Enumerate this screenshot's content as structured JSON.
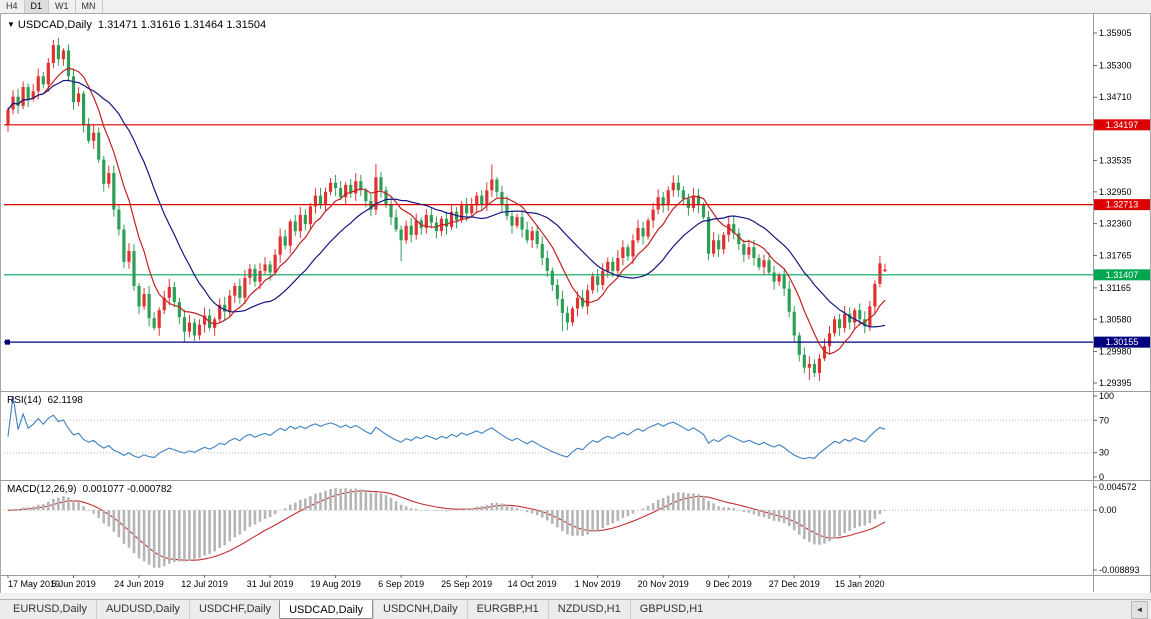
{
  "toolbar": {
    "timeframes": [
      {
        "label": "H4",
        "active": false
      },
      {
        "label": "D1",
        "active": true
      },
      {
        "label": "W1",
        "active": false
      },
      {
        "label": "MN",
        "active": false
      }
    ]
  },
  "chart": {
    "title": {
      "dropdown_glyph": "▼",
      "symbol": "USDCAD,Daily",
      "ohlc": "1.31471 1.31616 1.31464 1.31504"
    },
    "rsi_label": "RSI(14)",
    "rsi_value": "62.1198",
    "macd_label": "MACD(12,26,9)",
    "macd_values": "0.001077 -0.000782"
  },
  "chart_data": {
    "type": "candlestick",
    "symbol": "USDCAD",
    "timeframe": "Daily",
    "current_ohlc": {
      "open": 1.31471,
      "high": 1.31616,
      "low": 1.31464,
      "close": 1.31504
    },
    "ylim": [
      1.29395,
      1.35905
    ],
    "price_ticks": [
      "1.35905",
      "1.35300",
      "1.34710",
      "1.33535",
      "1.32950",
      "1.32360",
      "1.31765",
      "1.31165",
      "1.30580",
      "1.29980",
      "1.29395"
    ],
    "date_labels": [
      {
        "bar": 0,
        "label": "17 May 2019"
      },
      {
        "bar": 13,
        "label": "5 Jun 2019"
      },
      {
        "bar": 26,
        "label": "24 Jun 2019"
      },
      {
        "bar": 39,
        "label": "12 Jul 2019"
      },
      {
        "bar": 52,
        "label": "31 Jul 2019"
      },
      {
        "bar": 65,
        "label": "19 Aug 2019"
      },
      {
        "bar": 78,
        "label": "6 Sep 2019"
      },
      {
        "bar": 91,
        "label": "25 Sep 2019"
      },
      {
        "bar": 104,
        "label": "14 Oct 2019"
      },
      {
        "bar": 117,
        "label": "1 Nov 2019"
      },
      {
        "bar": 130,
        "label": "20 Nov 2019"
      },
      {
        "bar": 143,
        "label": "9 Dec 2019"
      },
      {
        "bar": 156,
        "label": "27 Dec 2019"
      },
      {
        "bar": 169,
        "label": "15 Jan 2020"
      }
    ],
    "first_open": 1.342,
    "closes": [
      1.3448,
      1.3472,
      1.3455,
      1.349,
      1.3468,
      1.3482,
      1.351,
      1.3495,
      1.3535,
      1.3568,
      1.3542,
      1.3558,
      1.351,
      1.3462,
      1.3478,
      1.342,
      1.339,
      1.3405,
      1.3355,
      1.331,
      1.333,
      1.3262,
      1.3225,
      1.3165,
      1.3185,
      1.312,
      1.3082,
      1.3105,
      1.306,
      1.3042,
      1.3075,
      1.3098,
      1.3118,
      1.309,
      1.3062,
      1.3035,
      1.3052,
      1.3028,
      1.3048,
      1.3065,
      1.3042,
      1.3058,
      1.3085,
      1.3072,
      1.3102,
      1.312,
      1.3098,
      1.3135,
      1.3152,
      1.3128,
      1.3148,
      1.316,
      1.3145,
      1.3178,
      1.3212,
      1.3195,
      1.324,
      1.3222,
      1.3252,
      1.3235,
      1.3268,
      1.3288,
      1.3272,
      1.3295,
      1.3312,
      1.3302,
      1.3285,
      1.3308,
      1.3292,
      1.3315,
      1.3298,
      1.3278,
      1.3262,
      1.3322,
      1.3298,
      1.3272,
      1.3248,
      1.3225,
      1.3205,
      1.3232,
      1.3215,
      1.3242,
      1.3228,
      1.3252,
      1.3238,
      1.3222,
      1.3245,
      1.323,
      1.3258,
      1.3242,
      1.327,
      1.3255,
      1.327,
      1.3288,
      1.3272,
      1.3298,
      1.3318,
      1.3295,
      1.3272,
      1.325,
      1.3232,
      1.3248,
      1.3225,
      1.3205,
      1.3222,
      1.3198,
      1.3172,
      1.3148,
      1.3122,
      1.3096,
      1.307,
      1.3052,
      1.3078,
      1.3098,
      1.3082,
      1.3112,
      1.3138,
      1.3122,
      1.3148,
      1.3165,
      1.3148,
      1.3172,
      1.3192,
      1.3175,
      1.3205,
      1.3228,
      1.3212,
      1.3242,
      1.3262,
      1.3285,
      1.327,
      1.3298,
      1.3312,
      1.3298,
      1.3282,
      1.3265,
      1.3288,
      1.327,
      1.3248,
      1.318,
      1.3205,
      1.3188,
      1.3215,
      1.3235,
      1.3218,
      1.3198,
      1.3178,
      1.3192,
      1.3172,
      1.3155,
      1.3168,
      1.3145,
      1.3128,
      1.314,
      1.3115,
      1.3072,
      1.3028,
      1.2992,
      1.2968,
      1.2975,
      1.2958,
      1.2985,
      1.3008,
      1.3032,
      1.3058,
      1.3042,
      1.3068,
      1.3052,
      1.3075,
      1.3058,
      1.3045,
      1.3082,
      1.3124,
      1.3162,
      1.31504
    ],
    "overrides": {
      "9": {
        "h": 1.3578
      },
      "11": {
        "h": 1.3562
      },
      "35": {
        "l": 1.3016
      },
      "37": {
        "l": 1.3018
      },
      "73": {
        "h": 1.3347
      },
      "78": {
        "l": 1.3166
      },
      "96": {
        "h": 1.3346
      },
      "110": {
        "l": 1.3036
      },
      "139": {
        "l": 1.3168
      },
      "159": {
        "l": 1.2945
      },
      "173": {
        "h": 1.3176
      },
      "174": {
        "o": 1.31471,
        "h": 1.31616,
        "l": 1.31464,
        "c": 1.31504
      }
    },
    "bull_color": "#e03232",
    "bear_color": "#2e9e57",
    "moving_averages": [
      {
        "period": 8,
        "color": "#c42020"
      },
      {
        "period": 20,
        "color": "#16167e"
      }
    ],
    "hlines": [
      {
        "price": 1.34197,
        "label": "1.34197",
        "color": "#dd0000"
      },
      {
        "price": 1.32713,
        "label": "1.32713",
        "color": "#dd0000"
      },
      {
        "price": 1.31407,
        "label": "1.31407",
        "color": "#00a650"
      },
      {
        "price": 1.30155,
        "label": "1.30155",
        "color": "#00007f",
        "handle": true
      }
    ],
    "rsi": {
      "period": 14,
      "value": 62.1198,
      "color": "#3e7fc1",
      "axis_labels": [
        "100",
        "70",
        "30",
        "0"
      ],
      "axis_values": [
        100,
        70,
        30,
        0
      ],
      "level_lines": [
        70,
        30
      ]
    },
    "macd": {
      "fast": 12,
      "slow": 26,
      "signal": 9,
      "value": 0.001077,
      "signal_value": -0.000782,
      "histogram_color": "#b5b5b5",
      "signal_color": "#c03030",
      "axis_labels": [
        "0.004572",
        "0.00",
        "-0.008893"
      ]
    }
  },
  "tabs": {
    "items": [
      {
        "label": "EURUSD,Daily",
        "active": false
      },
      {
        "label": "AUDUSD,Daily",
        "active": false
      },
      {
        "label": "USDCHF,Daily",
        "active": false
      },
      {
        "label": "USDCAD,Daily",
        "active": true
      },
      {
        "label": "USDCNH,Daily",
        "active": false
      },
      {
        "label": "EURGBP,H1",
        "active": false
      },
      {
        "label": "NZDUSD,H1",
        "active": false
      },
      {
        "label": "GBPUSD,H1",
        "active": false
      }
    ],
    "scroll_left_icon": "◄"
  }
}
